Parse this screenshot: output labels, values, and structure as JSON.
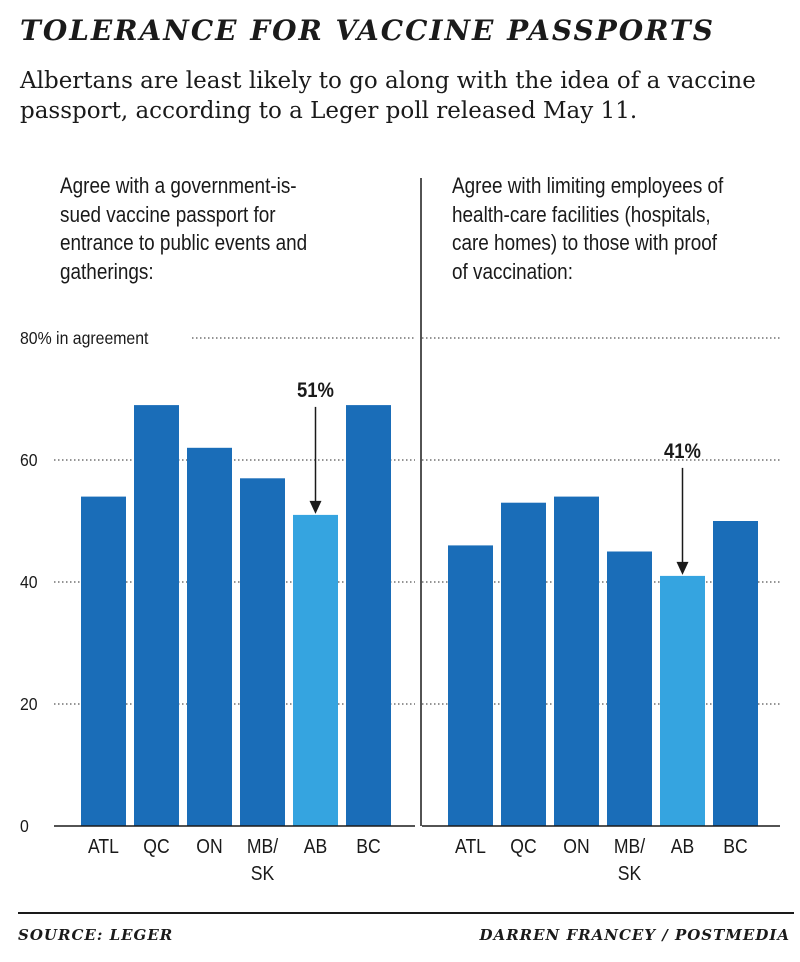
{
  "header": {
    "title": "TOLERANCE FOR VACCINE PASSPORTS",
    "subtitle": "Albertans are least likely to go along with the idea of a vaccine passport, according to a Leger poll released May 11."
  },
  "chart_data": [
    {
      "type": "bar",
      "title": "Agree with a government-issued vaccine passport for entrance to public events and gatherings:",
      "title_lines": [
        "Agree with a government-is-",
        "sued vaccine passport for",
        "entrance to public events and",
        "gatherings:"
      ],
      "categories": [
        "ATL",
        "QC",
        "ON",
        "MB/SK",
        "AB",
        "BC"
      ],
      "category_lines": [
        [
          "ATL"
        ],
        [
          "QC"
        ],
        [
          "ON"
        ],
        [
          "MB/",
          "SK"
        ],
        [
          "AB"
        ],
        [
          "BC"
        ]
      ],
      "values": [
        54,
        69,
        62,
        57,
        51,
        69
      ],
      "highlight": {
        "category": "AB",
        "label": "51%"
      },
      "ylim": [
        0,
        80
      ],
      "yticks": [
        0,
        20,
        40,
        60,
        80
      ],
      "ytick_labels": [
        "0",
        "20",
        "40",
        "60",
        "80% in agreement"
      ],
      "grid": "dotted"
    },
    {
      "type": "bar",
      "title": "Agree with limiting employees of health-care facilities (hospitals, care homes) to those with proof of vaccination:",
      "title_lines": [
        "Agree with limiting employees of",
        "health-care facilities (hospitals,",
        "care homes) to those with proof",
        "of vaccination:"
      ],
      "categories": [
        "ATL",
        "QC",
        "ON",
        "MB/SK",
        "AB",
        "BC"
      ],
      "category_lines": [
        [
          "ATL"
        ],
        [
          "QC"
        ],
        [
          "ON"
        ],
        [
          "MB/",
          "SK"
        ],
        [
          "AB"
        ],
        [
          "BC"
        ]
      ],
      "values": [
        46,
        53,
        54,
        45,
        41,
        50
      ],
      "highlight": {
        "category": "AB",
        "label": "41%"
      },
      "ylim": [
        0,
        80
      ],
      "yticks": [
        0,
        20,
        40,
        60,
        80
      ],
      "grid": "dotted"
    }
  ],
  "colors": {
    "bar": "#1a6db8",
    "highlight": "#35a4e0",
    "text": "#1a1a1a",
    "grid": "#555555"
  },
  "footer": {
    "source": "SOURCE: LEGER",
    "credit": "DARREN FRANCEY / POSTMEDIA"
  }
}
